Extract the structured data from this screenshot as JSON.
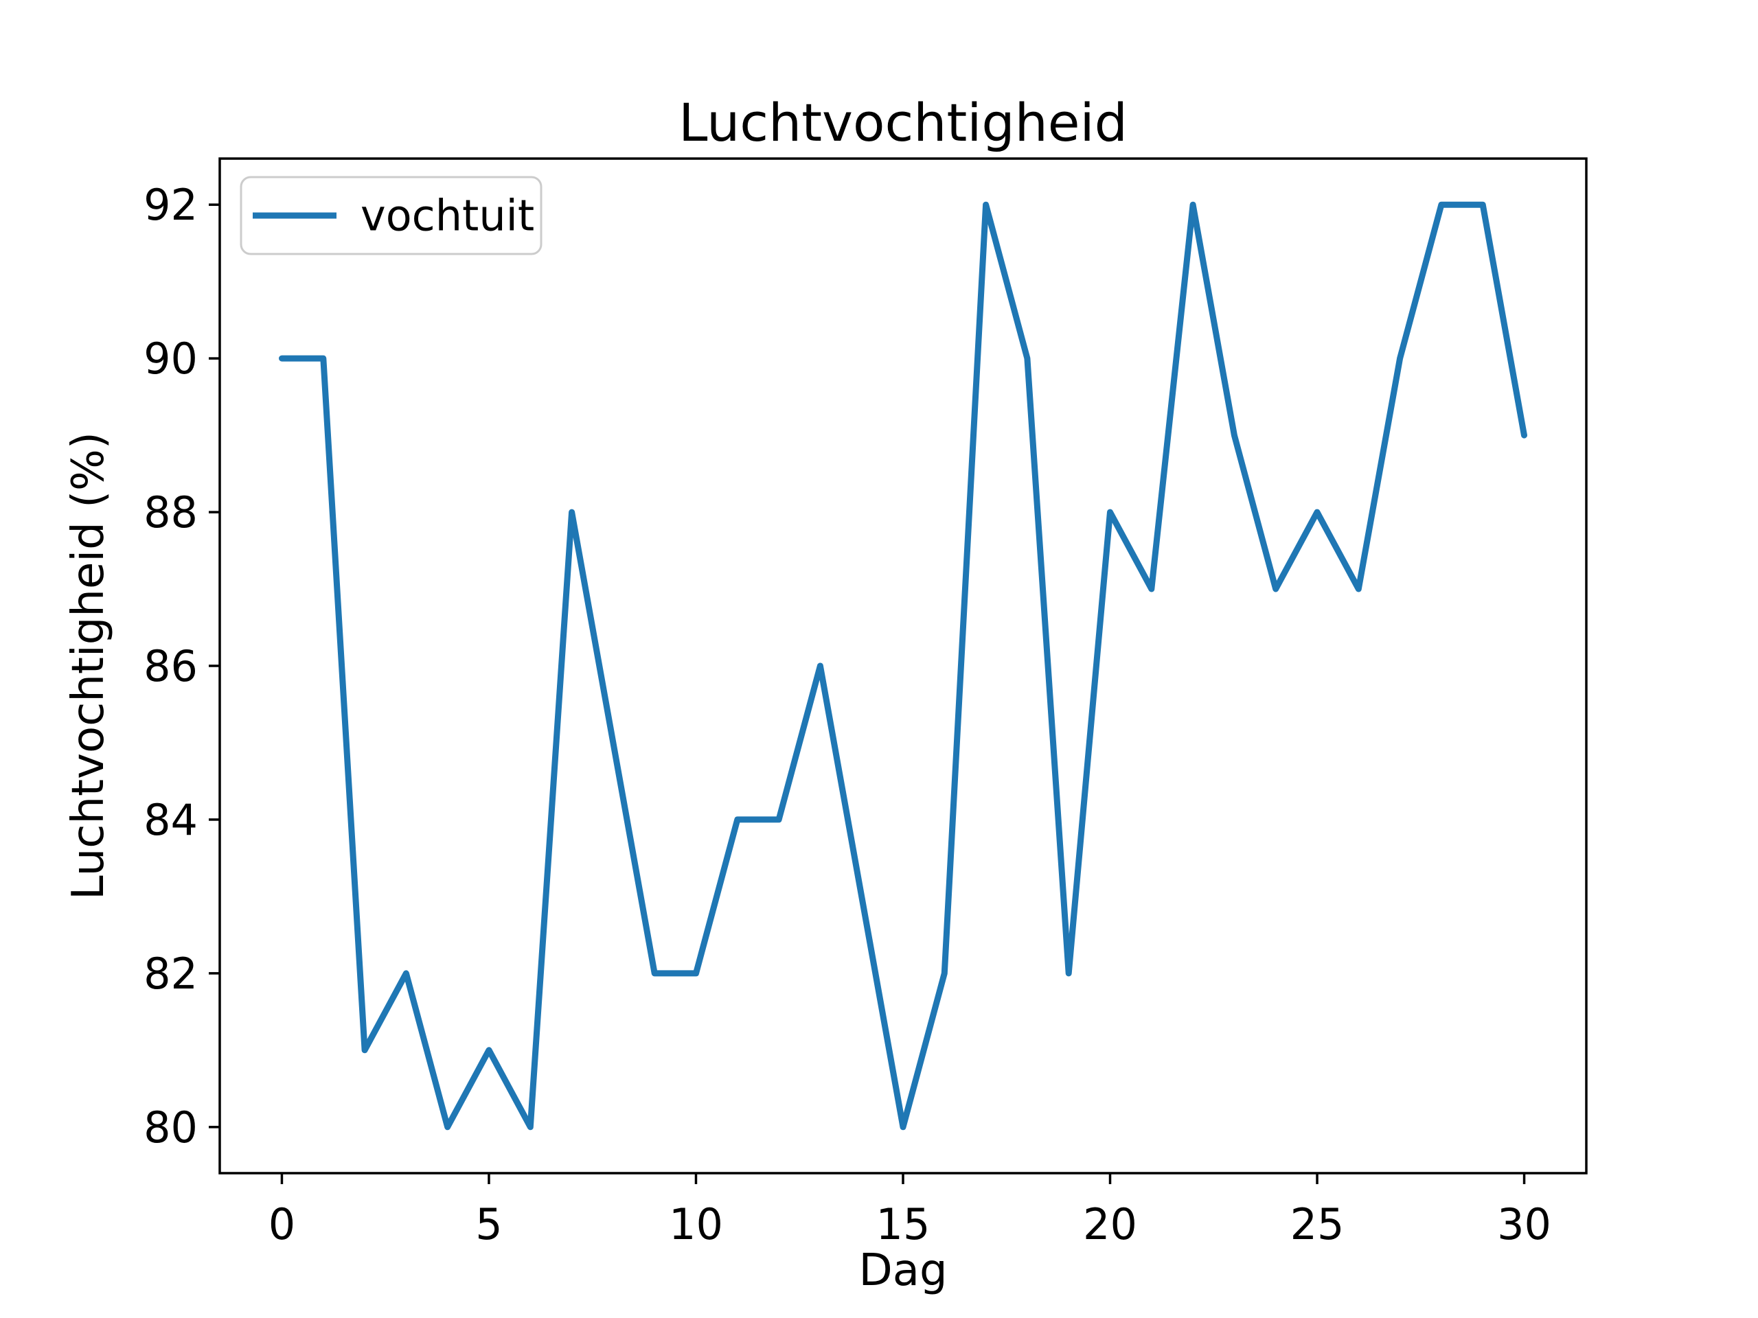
{
  "figure": {
    "background": "#ffffff",
    "text_color": "#000000"
  },
  "chart_data": {
    "type": "line",
    "title": "Luchtvochtigheid",
    "xlabel": "Dag",
    "ylabel": "Luchtvochtigheid (%)",
    "grid": false,
    "legend": {
      "position": "upper left",
      "entries": [
        "vochtuit"
      ]
    },
    "xlim": [
      -1.5,
      31.5
    ],
    "ylim": [
      79.4,
      92.6
    ],
    "xticks": [
      0,
      5,
      10,
      15,
      20,
      25,
      30
    ],
    "yticks": [
      80,
      82,
      84,
      86,
      88,
      90,
      92
    ],
    "x": [
      0,
      1,
      2,
      3,
      4,
      5,
      6,
      7,
      8,
      9,
      10,
      11,
      12,
      13,
      14,
      15,
      16,
      17,
      18,
      19,
      20,
      21,
      22,
      23,
      24,
      25,
      26,
      27,
      28,
      29,
      30
    ],
    "series": [
      {
        "name": "vochtuit",
        "color": "#1f77b4",
        "values": [
          90,
          90,
          81,
          82,
          80,
          81,
          80,
          88,
          85,
          82,
          82,
          84,
          84,
          86,
          83,
          80,
          82,
          92,
          90,
          82,
          88,
          87,
          92,
          89,
          87,
          88,
          87,
          90,
          92,
          92,
          89
        ]
      }
    ],
    "axis_color": "#000000",
    "legend_border_color": "#cccccc"
  }
}
